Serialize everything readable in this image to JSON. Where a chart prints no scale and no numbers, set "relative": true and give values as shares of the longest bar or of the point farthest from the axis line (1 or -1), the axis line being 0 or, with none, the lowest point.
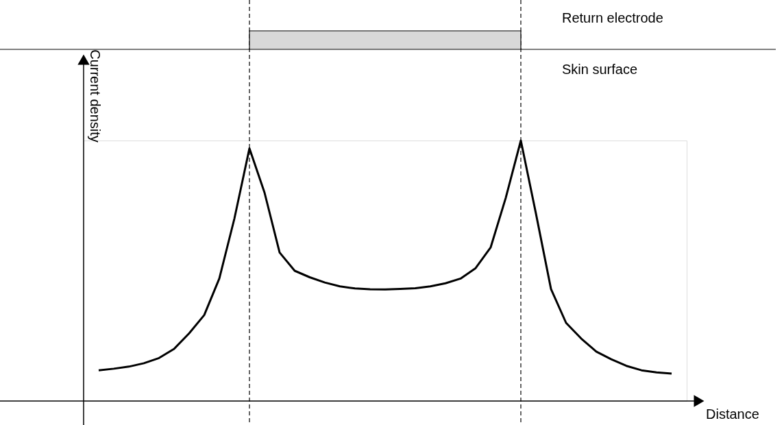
{
  "chart_data": {
    "type": "line",
    "relative": true,
    "xlabel": "Distance",
    "ylabel": "Current density",
    "categories": [
      null,
      null,
      null,
      null,
      null,
      null,
      null,
      null,
      null,
      null,
      null,
      null,
      null,
      null,
      null,
      null,
      null,
      null,
      null,
      null,
      null,
      null,
      null,
      null,
      null,
      null,
      null,
      null,
      null,
      null,
      null,
      null,
      null,
      null,
      null,
      null,
      null,
      null,
      null
    ],
    "series": [
      {
        "color": "#000000",
        "values": [
          0.118,
          0.124,
          0.132,
          0.145,
          0.165,
          0.2,
          0.26,
          0.33,
          0.47,
          0.7,
          0.97,
          0.8,
          0.57,
          0.5,
          0.475,
          0.455,
          0.44,
          0.432,
          0.429,
          0.428,
          0.43,
          0.433,
          0.44,
          0.452,
          0.47,
          0.51,
          0.59,
          0.78,
          1.0,
          0.72,
          0.43,
          0.3,
          0.24,
          0.19,
          0.16,
          0.135,
          0.118,
          0.11,
          0.105
        ]
      }
    ],
    "annotations": [
      "Return electrode",
      "Skin surface"
    ],
    "marker": "none",
    "line_style": "solid"
  }
}
